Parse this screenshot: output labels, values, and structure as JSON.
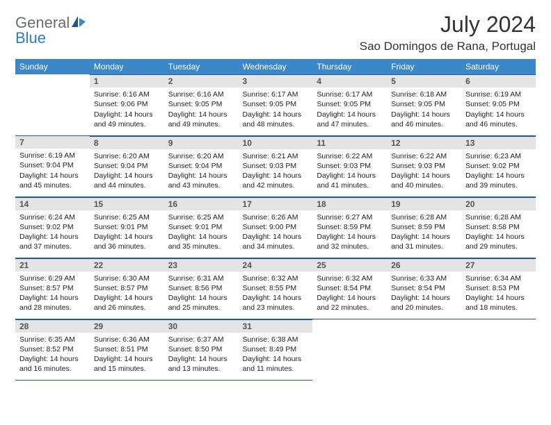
{
  "brand": {
    "top": "General",
    "bottom": "Blue"
  },
  "title": {
    "month_year": "July 2024",
    "location": "Sao Domingos de Rana, Portugal"
  },
  "colors": {
    "header_bg": "#3b87c8",
    "header_text": "#ffffff",
    "daynum_bg": "#e4e4e4",
    "rule": "#1a5a8f",
    "logo_gray": "#6b6b6b",
    "logo_blue": "#2f7bbf"
  },
  "weekdays": [
    "Sunday",
    "Monday",
    "Tuesday",
    "Wednesday",
    "Thursday",
    "Friday",
    "Saturday"
  ],
  "weeks": [
    [
      null,
      {
        "n": "1",
        "sunrise": "Sunrise: 6:16 AM",
        "sunset": "Sunset: 9:06 PM",
        "dl1": "Daylight: 14 hours",
        "dl2": "and 49 minutes."
      },
      {
        "n": "2",
        "sunrise": "Sunrise: 6:16 AM",
        "sunset": "Sunset: 9:05 PM",
        "dl1": "Daylight: 14 hours",
        "dl2": "and 49 minutes."
      },
      {
        "n": "3",
        "sunrise": "Sunrise: 6:17 AM",
        "sunset": "Sunset: 9:05 PM",
        "dl1": "Daylight: 14 hours",
        "dl2": "and 48 minutes."
      },
      {
        "n": "4",
        "sunrise": "Sunrise: 6:17 AM",
        "sunset": "Sunset: 9:05 PM",
        "dl1": "Daylight: 14 hours",
        "dl2": "and 47 minutes."
      },
      {
        "n": "5",
        "sunrise": "Sunrise: 6:18 AM",
        "sunset": "Sunset: 9:05 PM",
        "dl1": "Daylight: 14 hours",
        "dl2": "and 46 minutes."
      },
      {
        "n": "6",
        "sunrise": "Sunrise: 6:19 AM",
        "sunset": "Sunset: 9:05 PM",
        "dl1": "Daylight: 14 hours",
        "dl2": "and 46 minutes."
      }
    ],
    [
      {
        "n": "7",
        "sunrise": "Sunrise: 6:19 AM",
        "sunset": "Sunset: 9:04 PM",
        "dl1": "Daylight: 14 hours",
        "dl2": "and 45 minutes."
      },
      {
        "n": "8",
        "sunrise": "Sunrise: 6:20 AM",
        "sunset": "Sunset: 9:04 PM",
        "dl1": "Daylight: 14 hours",
        "dl2": "and 44 minutes."
      },
      {
        "n": "9",
        "sunrise": "Sunrise: 6:20 AM",
        "sunset": "Sunset: 9:04 PM",
        "dl1": "Daylight: 14 hours",
        "dl2": "and 43 minutes."
      },
      {
        "n": "10",
        "sunrise": "Sunrise: 6:21 AM",
        "sunset": "Sunset: 9:03 PM",
        "dl1": "Daylight: 14 hours",
        "dl2": "and 42 minutes."
      },
      {
        "n": "11",
        "sunrise": "Sunrise: 6:22 AM",
        "sunset": "Sunset: 9:03 PM",
        "dl1": "Daylight: 14 hours",
        "dl2": "and 41 minutes."
      },
      {
        "n": "12",
        "sunrise": "Sunrise: 6:22 AM",
        "sunset": "Sunset: 9:03 PM",
        "dl1": "Daylight: 14 hours",
        "dl2": "and 40 minutes."
      },
      {
        "n": "13",
        "sunrise": "Sunrise: 6:23 AM",
        "sunset": "Sunset: 9:02 PM",
        "dl1": "Daylight: 14 hours",
        "dl2": "and 39 minutes."
      }
    ],
    [
      {
        "n": "14",
        "sunrise": "Sunrise: 6:24 AM",
        "sunset": "Sunset: 9:02 PM",
        "dl1": "Daylight: 14 hours",
        "dl2": "and 37 minutes."
      },
      {
        "n": "15",
        "sunrise": "Sunrise: 6:25 AM",
        "sunset": "Sunset: 9:01 PM",
        "dl1": "Daylight: 14 hours",
        "dl2": "and 36 minutes."
      },
      {
        "n": "16",
        "sunrise": "Sunrise: 6:25 AM",
        "sunset": "Sunset: 9:01 PM",
        "dl1": "Daylight: 14 hours",
        "dl2": "and 35 minutes."
      },
      {
        "n": "17",
        "sunrise": "Sunrise: 6:26 AM",
        "sunset": "Sunset: 9:00 PM",
        "dl1": "Daylight: 14 hours",
        "dl2": "and 34 minutes."
      },
      {
        "n": "18",
        "sunrise": "Sunrise: 6:27 AM",
        "sunset": "Sunset: 8:59 PM",
        "dl1": "Daylight: 14 hours",
        "dl2": "and 32 minutes."
      },
      {
        "n": "19",
        "sunrise": "Sunrise: 6:28 AM",
        "sunset": "Sunset: 8:59 PM",
        "dl1": "Daylight: 14 hours",
        "dl2": "and 31 minutes."
      },
      {
        "n": "20",
        "sunrise": "Sunrise: 6:28 AM",
        "sunset": "Sunset: 8:58 PM",
        "dl1": "Daylight: 14 hours",
        "dl2": "and 29 minutes."
      }
    ],
    [
      {
        "n": "21",
        "sunrise": "Sunrise: 6:29 AM",
        "sunset": "Sunset: 8:57 PM",
        "dl1": "Daylight: 14 hours",
        "dl2": "and 28 minutes."
      },
      {
        "n": "22",
        "sunrise": "Sunrise: 6:30 AM",
        "sunset": "Sunset: 8:57 PM",
        "dl1": "Daylight: 14 hours",
        "dl2": "and 26 minutes."
      },
      {
        "n": "23",
        "sunrise": "Sunrise: 6:31 AM",
        "sunset": "Sunset: 8:56 PM",
        "dl1": "Daylight: 14 hours",
        "dl2": "and 25 minutes."
      },
      {
        "n": "24",
        "sunrise": "Sunrise: 6:32 AM",
        "sunset": "Sunset: 8:55 PM",
        "dl1": "Daylight: 14 hours",
        "dl2": "and 23 minutes."
      },
      {
        "n": "25",
        "sunrise": "Sunrise: 6:32 AM",
        "sunset": "Sunset: 8:54 PM",
        "dl1": "Daylight: 14 hours",
        "dl2": "and 22 minutes."
      },
      {
        "n": "26",
        "sunrise": "Sunrise: 6:33 AM",
        "sunset": "Sunset: 8:54 PM",
        "dl1": "Daylight: 14 hours",
        "dl2": "and 20 minutes."
      },
      {
        "n": "27",
        "sunrise": "Sunrise: 6:34 AM",
        "sunset": "Sunset: 8:53 PM",
        "dl1": "Daylight: 14 hours",
        "dl2": "and 18 minutes."
      }
    ],
    [
      {
        "n": "28",
        "sunrise": "Sunrise: 6:35 AM",
        "sunset": "Sunset: 8:52 PM",
        "dl1": "Daylight: 14 hours",
        "dl2": "and 16 minutes."
      },
      {
        "n": "29",
        "sunrise": "Sunrise: 6:36 AM",
        "sunset": "Sunset: 8:51 PM",
        "dl1": "Daylight: 14 hours",
        "dl2": "and 15 minutes."
      },
      {
        "n": "30",
        "sunrise": "Sunrise: 6:37 AM",
        "sunset": "Sunset: 8:50 PM",
        "dl1": "Daylight: 14 hours",
        "dl2": "and 13 minutes."
      },
      {
        "n": "31",
        "sunrise": "Sunrise: 6:38 AM",
        "sunset": "Sunset: 8:49 PM",
        "dl1": "Daylight: 14 hours",
        "dl2": "and 11 minutes."
      },
      null,
      null,
      null
    ]
  ]
}
